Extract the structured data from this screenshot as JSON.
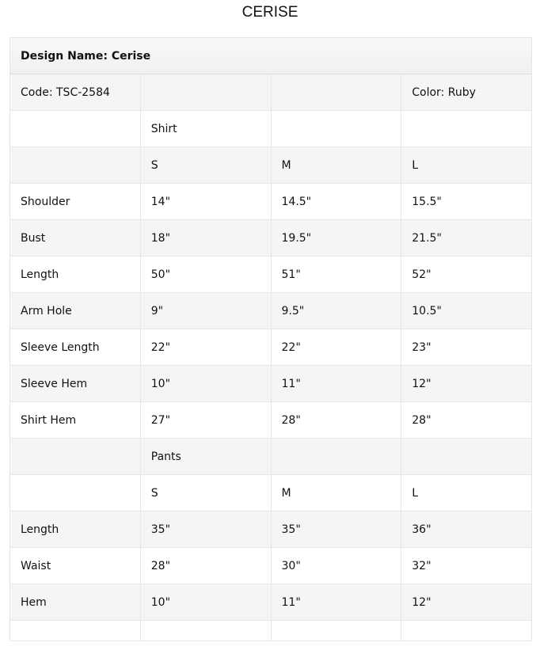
{
  "title": "CERISE",
  "table": {
    "header": "Design Name: Cerise",
    "rows": [
      [
        "Code: TSC-2584",
        "",
        "",
        "Color: Ruby"
      ],
      [
        "",
        "Shirt",
        "",
        ""
      ],
      [
        "",
        "S",
        "M",
        "L"
      ],
      [
        "Shoulder",
        "14\"",
        "14.5\"",
        "15.5\""
      ],
      [
        "Bust",
        "18\"",
        "19.5\"",
        "21.5\""
      ],
      [
        "Length",
        "50\"",
        "51\"",
        "52\""
      ],
      [
        "Arm Hole",
        "9\"",
        "9.5\"",
        "10.5\""
      ],
      [
        "Sleeve Length",
        "22\"",
        "22\"",
        "23\""
      ],
      [
        "Sleeve Hem",
        "10\"",
        "11\"",
        "12\""
      ],
      [
        "Shirt Hem",
        "27\"",
        "28\"",
        "28\""
      ],
      [
        "",
        "Pants",
        "",
        ""
      ],
      [
        "",
        "S",
        "M",
        "L"
      ],
      [
        "Length",
        "35\"",
        "35\"",
        "36\""
      ],
      [
        "Waist",
        "28\"",
        "30\"",
        "32\""
      ],
      [
        "Hem",
        "10\"",
        "11\"",
        "12\""
      ],
      [
        "",
        "",
        "",
        ""
      ]
    ]
  }
}
